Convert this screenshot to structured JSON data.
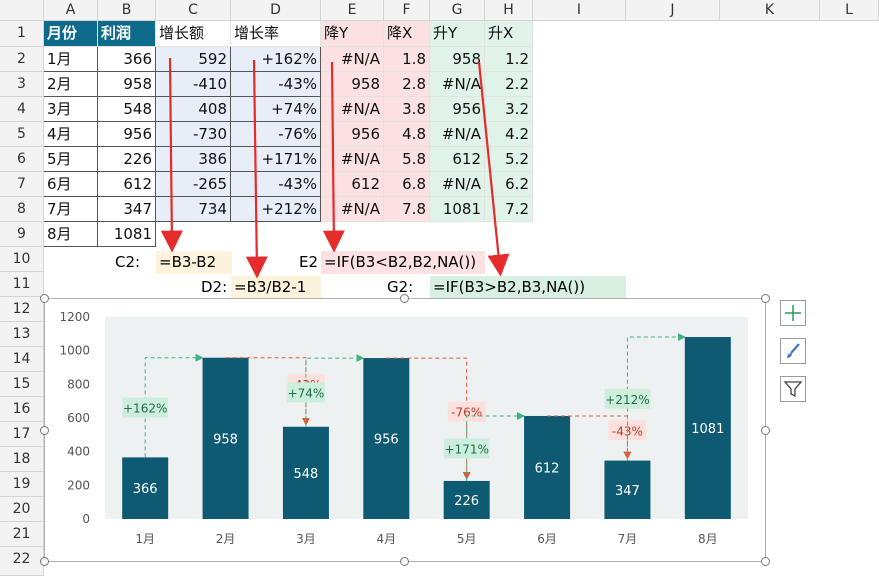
{
  "columns": [
    "A",
    "B",
    "C",
    "D",
    "E",
    "F",
    "G",
    "H",
    "I",
    "J",
    "K",
    "L"
  ],
  "rows": [
    "1",
    "2",
    "3",
    "4",
    "5",
    "6",
    "7",
    "8",
    "9",
    "10",
    "11",
    "12",
    "13",
    "14",
    "15",
    "16",
    "17",
    "18",
    "19",
    "20",
    "21",
    "22"
  ],
  "table": {
    "headers": [
      "月份",
      "利润",
      "增长额",
      "增长率",
      "降Y",
      "降X",
      "升Y",
      "升X"
    ],
    "rows": [
      [
        "1月",
        "366",
        "592",
        "+162%",
        "#N/A",
        "1.8",
        "958",
        "1.2"
      ],
      [
        "2月",
        "958",
        "-410",
        "-43%",
        "958",
        "2.8",
        "#N/A",
        "2.2"
      ],
      [
        "3月",
        "548",
        "408",
        "+74%",
        "#N/A",
        "3.8",
        "956",
        "3.2"
      ],
      [
        "4月",
        "956",
        "-730",
        "-76%",
        "956",
        "4.8",
        "#N/A",
        "4.2"
      ],
      [
        "5月",
        "226",
        "386",
        "+171%",
        "#N/A",
        "5.8",
        "612",
        "5.2"
      ],
      [
        "6月",
        "612",
        "-265",
        "-43%",
        "612",
        "6.8",
        "#N/A",
        "6.2"
      ],
      [
        "7月",
        "347",
        "734",
        "+212%",
        "#N/A",
        "7.8",
        "1081",
        "7.2"
      ],
      [
        "8月",
        "1081",
        "",
        "",
        "",
        "",
        "",
        ""
      ]
    ]
  },
  "formulas": {
    "c2_label": "C2:",
    "c2_formula": "=B3-B2",
    "d2_label": "D2:",
    "d2_formula": "=B3/B2-1",
    "e2_label": "E2",
    "e2_formula": "=IF(B3<B2,B2,NA())",
    "g2_label": "G2:",
    "g2_formula": "=IF(B3>B2,B3,NA())"
  },
  "chart_data": {
    "type": "bar",
    "categories": [
      "1月",
      "2月",
      "3月",
      "4月",
      "5月",
      "6月",
      "7月",
      "8月"
    ],
    "values": [
      366,
      958,
      548,
      956,
      226,
      612,
      347,
      1081
    ],
    "growth_labels": [
      "+162%",
      "-43%",
      "+74%",
      "-76%",
      "+171%",
      "-43%",
      "+212%"
    ],
    "ylim": [
      0,
      1200
    ],
    "yticks": [
      "0",
      "200",
      "400",
      "600",
      "800",
      "1000",
      "1200"
    ],
    "grid": false,
    "colors": {
      "bar": "#0e5a73",
      "plot_bg": "#eef1f1",
      "up": "#3fb383",
      "down": "#e05a3a",
      "up_label_bg": "#cdeedd",
      "down_label_bg": "#fde0dc",
      "down_text": "#c0392b",
      "up_text": "#1f6f4a",
      "arrow_red": "#e52b2b"
    }
  },
  "side_buttons": [
    "plus-icon",
    "brush-icon",
    "filter-icon"
  ]
}
